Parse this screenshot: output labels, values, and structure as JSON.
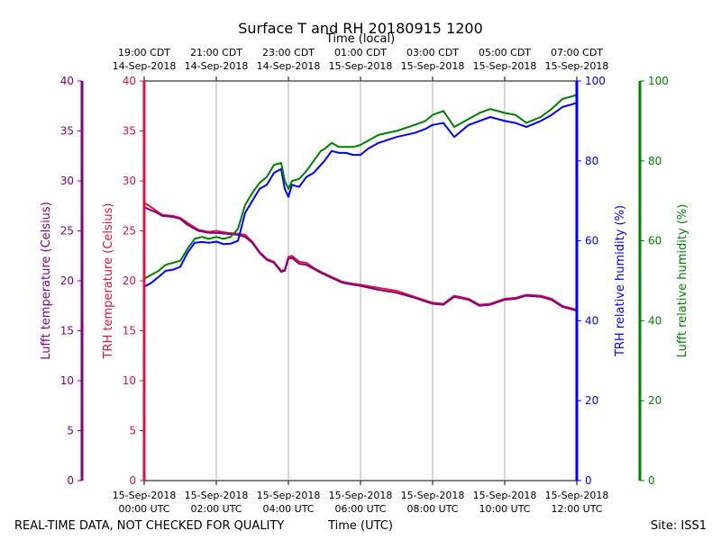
{
  "chart_data": {
    "type": "line",
    "title": "Surface T and RH 20180915 1200",
    "top_axis_label": "Time (local)",
    "bottom_axis_label": "Time (UTC)",
    "footer_left": "REAL-TIME DATA, NOT CHECKED FOR QUALITY",
    "footer_right": "Site: ISS1",
    "x_range_hours_utc": [
      0,
      12
    ],
    "bottom_ticks": [
      {
        "hour": 0,
        "line1": "15-Sep-2018",
        "line2": "00:00 UTC"
      },
      {
        "hour": 2,
        "line1": "15-Sep-2018",
        "line2": "02:00 UTC"
      },
      {
        "hour": 4,
        "line1": "15-Sep-2018",
        "line2": "04:00 UTC"
      },
      {
        "hour": 6,
        "line1": "15-Sep-2018",
        "line2": "06:00 UTC"
      },
      {
        "hour": 8,
        "line1": "15-Sep-2018",
        "line2": "08:00 UTC"
      },
      {
        "hour": 10,
        "line1": "15-Sep-2018",
        "line2": "10:00 UTC"
      },
      {
        "hour": 12,
        "line1": "15-Sep-2018",
        "line2": "12:00 UTC"
      }
    ],
    "top_ticks": [
      {
        "hour": 0,
        "line1": "19:00 CDT",
        "line2": "14-Sep-2018"
      },
      {
        "hour": 2,
        "line1": "21:00 CDT",
        "line2": "14-Sep-2018"
      },
      {
        "hour": 4,
        "line1": "23:00 CDT",
        "line2": "14-Sep-2018"
      },
      {
        "hour": 6,
        "line1": "01:00 CDT",
        "line2": "15-Sep-2018"
      },
      {
        "hour": 8,
        "line1": "03:00 CDT",
        "line2": "15-Sep-2018"
      },
      {
        "hour": 10,
        "line1": "05:00 CDT",
        "line2": "15-Sep-2018"
      },
      {
        "hour": 12,
        "line1": "07:00 CDT",
        "line2": "15-Sep-2018"
      }
    ],
    "axes": {
      "lufft_temp": {
        "label": "Lufft temperature (Celsius)",
        "range": [
          0,
          40
        ],
        "ticks": [
          0,
          5,
          10,
          15,
          20,
          25,
          30,
          35,
          40
        ],
        "color": "#800080"
      },
      "trh_temp": {
        "label": "TRH temperature (Celsius)",
        "range": [
          0,
          40
        ],
        "ticks": [
          0,
          5,
          10,
          15,
          20,
          25,
          30,
          35,
          40
        ],
        "color": "#dc143c"
      },
      "trh_rh": {
        "label": "TRH relative humidity (%)",
        "range": [
          0,
          100
        ],
        "ticks": [
          0,
          20,
          40,
          60,
          80,
          100
        ],
        "color": "#0000ff"
      },
      "lufft_rh": {
        "label": "Lufft relative humidity (%)",
        "range": [
          0,
          100
        ],
        "ticks": [
          0,
          20,
          40,
          60,
          80,
          100
        ],
        "color": "#008000"
      }
    },
    "grid": "vertical",
    "series": [
      {
        "axis": "trh_temp",
        "color": "#dc143c",
        "x": [
          0,
          0.1,
          0.3,
          0.5,
          0.8,
          1.0,
          1.2,
          1.5,
          1.8,
          2.0,
          2.3,
          2.6,
          2.8,
          3.0,
          3.2,
          3.4,
          3.6,
          3.8,
          3.9,
          4.0,
          4.1,
          4.3,
          4.5,
          4.7,
          4.9,
          5.2,
          5.5,
          5.8,
          6.0,
          6.5,
          7.0,
          7.5,
          8.0,
          8.3,
          8.6,
          9.0,
          9.3,
          9.6,
          10.0,
          10.3,
          10.6,
          11.0,
          11.3,
          11.6,
          12.0
        ],
        "y": [
          27.8,
          27.6,
          27.1,
          26.6,
          26.5,
          26.3,
          25.8,
          25.1,
          24.9,
          25.0,
          24.8,
          24.7,
          24.6,
          23.9,
          22.9,
          22.2,
          21.9,
          21.0,
          21.1,
          22.4,
          22.5,
          21.9,
          21.8,
          21.3,
          20.9,
          20.4,
          19.9,
          19.7,
          19.6,
          19.3,
          19.0,
          18.4,
          17.8,
          17.7,
          18.5,
          18.2,
          17.6,
          17.7,
          18.2,
          18.3,
          18.6,
          18.5,
          18.2,
          17.5,
          17.1
        ]
      },
      {
        "axis": "lufft_temp",
        "color": "#800080",
        "x": [
          0,
          0.1,
          0.3,
          0.5,
          0.8,
          1.0,
          1.2,
          1.5,
          1.8,
          2.0,
          2.3,
          2.6,
          2.8,
          3.0,
          3.2,
          3.4,
          3.6,
          3.8,
          3.9,
          4.0,
          4.1,
          4.3,
          4.5,
          4.7,
          4.9,
          5.2,
          5.5,
          5.8,
          6.0,
          6.5,
          7.0,
          7.5,
          8.0,
          8.3,
          8.6,
          9.0,
          9.3,
          9.6,
          10.0,
          10.3,
          10.6,
          11.0,
          11.3,
          11.6,
          12.0
        ],
        "y": [
          27.4,
          27.2,
          26.9,
          26.5,
          26.4,
          26.2,
          25.6,
          25.0,
          24.8,
          24.8,
          24.7,
          24.6,
          24.4,
          23.8,
          22.8,
          22.1,
          21.8,
          20.9,
          21.0,
          22.2,
          22.3,
          21.7,
          21.6,
          21.2,
          20.8,
          20.3,
          19.8,
          19.6,
          19.5,
          19.1,
          18.8,
          18.3,
          17.7,
          17.6,
          18.4,
          18.1,
          17.5,
          17.6,
          18.1,
          18.2,
          18.5,
          18.4,
          18.1,
          17.4,
          17.0
        ]
      },
      {
        "axis": "trh_rh",
        "color": "#0000ff",
        "x": [
          0,
          0.2,
          0.4,
          0.6,
          0.8,
          1.0,
          1.2,
          1.4,
          1.6,
          1.8,
          2.0,
          2.2,
          2.4,
          2.6,
          2.8,
          3.0,
          3.2,
          3.4,
          3.6,
          3.8,
          3.9,
          4.0,
          4.1,
          4.3,
          4.5,
          4.7,
          4.9,
          5.0,
          5.2,
          5.4,
          5.6,
          5.8,
          6.0,
          6.2,
          6.5,
          7.0,
          7.5,
          7.8,
          8.0,
          8.3,
          8.6,
          9.0,
          9.3,
          9.6,
          10.0,
          10.3,
          10.6,
          11.0,
          11.3,
          11.6,
          12.0
        ],
        "y": [
          48.5,
          49.5,
          51.0,
          52.5,
          52.8,
          53.5,
          57.0,
          59.5,
          59.7,
          59.5,
          59.8,
          59.2,
          59.3,
          60.0,
          67.0,
          70.0,
          73.0,
          74.0,
          77.0,
          78.0,
          73.0,
          71.0,
          74.0,
          73.5,
          76.0,
          77.0,
          79.0,
          80.0,
          82.5,
          82.0,
          82.0,
          81.5,
          81.5,
          83.0,
          84.5,
          86.0,
          87.0,
          88.0,
          89.0,
          89.5,
          86.0,
          89.0,
          90.0,
          91.0,
          90.0,
          89.5,
          88.5,
          90.0,
          91.5,
          93.5,
          94.5
        ]
      },
      {
        "axis": "lufft_rh",
        "color": "#008000",
        "x": [
          0,
          0.2,
          0.4,
          0.6,
          0.8,
          1.0,
          1.2,
          1.4,
          1.6,
          1.8,
          2.0,
          2.2,
          2.4,
          2.6,
          2.8,
          3.0,
          3.2,
          3.4,
          3.6,
          3.8,
          3.9,
          4.0,
          4.1,
          4.3,
          4.5,
          4.7,
          4.9,
          5.0,
          5.2,
          5.4,
          5.6,
          5.8,
          6.0,
          6.2,
          6.5,
          7.0,
          7.5,
          7.8,
          8.0,
          8.3,
          8.6,
          9.0,
          9.3,
          9.6,
          10.0,
          10.3,
          10.6,
          11.0,
          11.3,
          11.6,
          12.0
        ],
        "y": [
          50.5,
          51.5,
          52.5,
          54.0,
          54.5,
          55.0,
          58.0,
          60.5,
          61.0,
          60.5,
          61.0,
          60.5,
          61.0,
          63.0,
          69.0,
          72.0,
          74.5,
          76.0,
          79.0,
          79.5,
          75.0,
          73.0,
          75.0,
          75.5,
          77.5,
          80.0,
          82.5,
          83.0,
          84.5,
          83.5,
          83.5,
          83.5,
          84.0,
          85.0,
          86.5,
          87.5,
          89.0,
          90.0,
          91.5,
          92.5,
          88.5,
          90.5,
          92.0,
          93.0,
          92.0,
          91.5,
          89.5,
          91.0,
          93.0,
          95.5,
          96.5
        ]
      }
    ]
  }
}
